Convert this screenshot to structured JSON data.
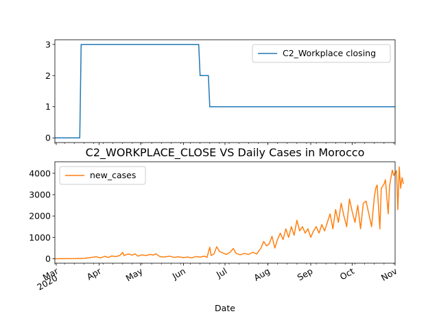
{
  "chart_data": [
    {
      "type": "line",
      "title": "",
      "xlabel": "",
      "ylabel": "",
      "ylim": [
        -0.15,
        3.15
      ],
      "y_ticks": [
        0,
        1,
        2,
        3
      ],
      "legend": {
        "placement": "top-right",
        "entries": [
          "C2_Workplace closing"
        ]
      },
      "grid": false,
      "series": [
        {
          "name": "C2_Workplace closing",
          "color": "#1f77b4",
          "points": [
            [
              "2020-02-29",
              0
            ],
            [
              "2020-03-18",
              0
            ],
            [
              "2020-03-19",
              3
            ],
            [
              "2020-06-12",
              3
            ],
            [
              "2020-06-13",
              2
            ],
            [
              "2020-06-19",
              2
            ],
            [
              "2020-06-20",
              1
            ],
            [
              "2020-11-01",
              1
            ]
          ]
        }
      ]
    },
    {
      "type": "line",
      "title": "C2_WORKPLACE_CLOSE VS Daily Cases in Morocco",
      "xlabel": "Date",
      "ylabel": "",
      "ylim": [
        -210,
        4540
      ],
      "y_ticks": [
        0,
        1000,
        2000,
        3000,
        4000
      ],
      "x_ticks": [
        {
          "date": "2020-03-01",
          "label": "Mar",
          "sublabel": "2020"
        },
        {
          "date": "2020-04-01",
          "label": "Apr"
        },
        {
          "date": "2020-05-01",
          "label": "May"
        },
        {
          "date": "2020-06-01",
          "label": "Jun"
        },
        {
          "date": "2020-07-01",
          "label": "Jul"
        },
        {
          "date": "2020-08-01",
          "label": "Aug"
        },
        {
          "date": "2020-09-01",
          "label": "Sep"
        },
        {
          "date": "2020-10-01",
          "label": "Oct"
        },
        {
          "date": "2020-11-01",
          "label": "Nov"
        }
      ],
      "legend": {
        "placement": "top-left",
        "entries": [
          "new_cases"
        ]
      },
      "grid": false,
      "series": [
        {
          "name": "new_cases",
          "color": "#ff7f0e",
          "points": [
            [
              "2020-02-29",
              0
            ],
            [
              "2020-03-15",
              5
            ],
            [
              "2020-03-22",
              20
            ],
            [
              "2020-03-26",
              60
            ],
            [
              "2020-03-30",
              90
            ],
            [
              "2020-04-02",
              40
            ],
            [
              "2020-04-05",
              110
            ],
            [
              "2020-04-08",
              60
            ],
            [
              "2020-04-10",
              130
            ],
            [
              "2020-04-13",
              100
            ],
            [
              "2020-04-16",
              150
            ],
            [
              "2020-04-18",
              300
            ],
            [
              "2020-04-19",
              150
            ],
            [
              "2020-04-22",
              220
            ],
            [
              "2020-04-25",
              170
            ],
            [
              "2020-04-27",
              230
            ],
            [
              "2020-04-29",
              120
            ],
            [
              "2020-05-02",
              180
            ],
            [
              "2020-05-05",
              150
            ],
            [
              "2020-05-08",
              200
            ],
            [
              "2020-05-10",
              170
            ],
            [
              "2020-05-12",
              230
            ],
            [
              "2020-05-15",
              100
            ],
            [
              "2020-05-18",
              80
            ],
            [
              "2020-05-22",
              120
            ],
            [
              "2020-05-25",
              60
            ],
            [
              "2020-05-28",
              90
            ],
            [
              "2020-06-01",
              50
            ],
            [
              "2020-06-04",
              80
            ],
            [
              "2020-06-07",
              40
            ],
            [
              "2020-06-10",
              100
            ],
            [
              "2020-06-13",
              80
            ],
            [
              "2020-06-16",
              120
            ],
            [
              "2020-06-18",
              60
            ],
            [
              "2020-06-20",
              540
            ],
            [
              "2020-06-21",
              150
            ],
            [
              "2020-06-23",
              220
            ],
            [
              "2020-06-25",
              560
            ],
            [
              "2020-06-27",
              350
            ],
            [
              "2020-06-29",
              280
            ],
            [
              "2020-07-02",
              200
            ],
            [
              "2020-07-05",
              320
            ],
            [
              "2020-07-07",
              480
            ],
            [
              "2020-07-09",
              250
            ],
            [
              "2020-07-12",
              180
            ],
            [
              "2020-07-15",
              250
            ],
            [
              "2020-07-18",
              200
            ],
            [
              "2020-07-21",
              300
            ],
            [
              "2020-07-24",
              220
            ],
            [
              "2020-07-27",
              500
            ],
            [
              "2020-07-29",
              810
            ],
            [
              "2020-07-31",
              600
            ],
            [
              "2020-08-02",
              700
            ],
            [
              "2020-08-04",
              1050
            ],
            [
              "2020-08-06",
              500
            ],
            [
              "2020-08-08",
              900
            ],
            [
              "2020-08-10",
              1200
            ],
            [
              "2020-08-12",
              900
            ],
            [
              "2020-08-14",
              1400
            ],
            [
              "2020-08-16",
              1000
            ],
            [
              "2020-08-18",
              1500
            ],
            [
              "2020-08-20",
              1100
            ],
            [
              "2020-08-22",
              1800
            ],
            [
              "2020-08-24",
              1300
            ],
            [
              "2020-08-26",
              1500
            ],
            [
              "2020-08-28",
              1200
            ],
            [
              "2020-08-30",
              1400
            ],
            [
              "2020-09-01",
              1000
            ],
            [
              "2020-09-03",
              1300
            ],
            [
              "2020-09-05",
              1500
            ],
            [
              "2020-09-07",
              1200
            ],
            [
              "2020-09-09",
              1600
            ],
            [
              "2020-09-11",
              1300
            ],
            [
              "2020-09-13",
              1700
            ],
            [
              "2020-09-15",
              2100
            ],
            [
              "2020-09-17",
              1400
            ],
            [
              "2020-09-19",
              2300
            ],
            [
              "2020-09-21",
              1700
            ],
            [
              "2020-09-23",
              2600
            ],
            [
              "2020-09-25",
              2000
            ],
            [
              "2020-09-27",
              1500
            ],
            [
              "2020-09-29",
              2800
            ],
            [
              "2020-10-01",
              2200
            ],
            [
              "2020-10-03",
              1700
            ],
            [
              "2020-10-05",
              2500
            ],
            [
              "2020-10-07",
              1400
            ],
            [
              "2020-10-09",
              2600
            ],
            [
              "2020-10-11",
              2700
            ],
            [
              "2020-10-13",
              2100
            ],
            [
              "2020-10-15",
              1500
            ],
            [
              "2020-10-17",
              2900
            ],
            [
              "2020-10-18",
              3300
            ],
            [
              "2020-10-19",
              3450
            ],
            [
              "2020-10-21",
              1400
            ],
            [
              "2020-10-22",
              3300
            ],
            [
              "2020-10-23",
              3400
            ],
            [
              "2020-10-24",
              3500
            ],
            [
              "2020-10-25",
              3700
            ],
            [
              "2020-10-27",
              2100
            ],
            [
              "2020-10-28",
              3400
            ],
            [
              "2020-10-29",
              3800
            ],
            [
              "2020-10-30",
              4150
            ],
            [
              "2020-10-31",
              3900
            ],
            [
              "2020-11-01",
              4000
            ],
            [
              "2020-11-02",
              4120
            ],
            [
              "2020-11-03",
              2300
            ],
            [
              "2020-11-04",
              4300
            ],
            [
              "2020-11-05",
              3300
            ],
            [
              "2020-11-06",
              3800
            ],
            [
              "2020-11-07",
              3500
            ]
          ]
        }
      ]
    }
  ]
}
